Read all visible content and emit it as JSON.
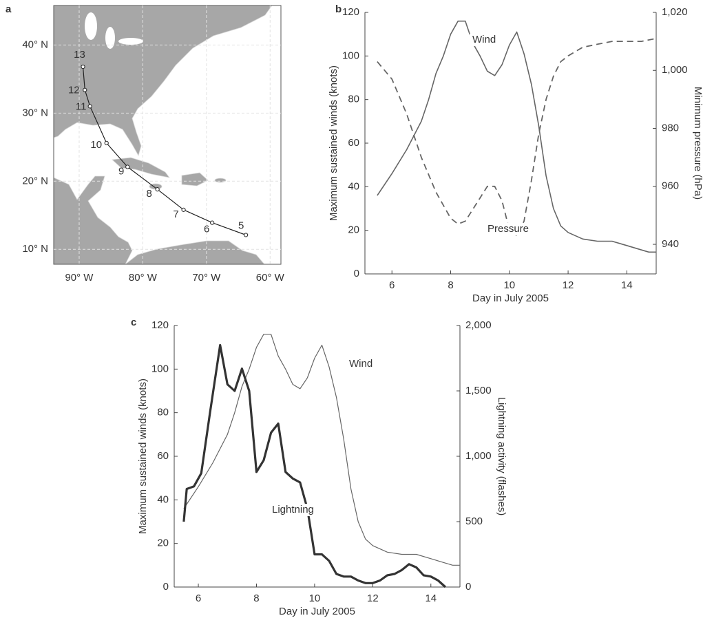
{
  "chart_data": [
    {
      "type": "map",
      "panel_label": "a",
      "xlim": [
        -94,
        -58.3
      ],
      "ylim": [
        7.8,
        45.8
      ],
      "xticks": [
        {
          "value": -90,
          "label": "90° W"
        },
        {
          "value": -80,
          "label": "80° W"
        },
        {
          "value": -70,
          "label": "70° W"
        },
        {
          "value": -60,
          "label": "60° W"
        }
      ],
      "yticks": [
        {
          "value": 10,
          "label": "10° N"
        },
        {
          "value": 20,
          "label": "20° N"
        },
        {
          "value": 30,
          "label": "30° N"
        },
        {
          "value": 40,
          "label": "40° N"
        }
      ],
      "grid": true,
      "series": [
        {
          "color": "#222222",
          "x": [
            -63.8,
            -69.1,
            -73.6,
            -77.7,
            -82.4,
            -85.7,
            -88.3,
            -89.1,
            -89.4
          ],
          "values": [
            12.1,
            13.9,
            15.8,
            18.8,
            22.1,
            25.6,
            31.0,
            33.4,
            36.8
          ],
          "point_labels": [
            "5",
            "6",
            "7",
            "8",
            "9",
            "10",
            "11",
            "12",
            "13"
          ]
        }
      ]
    },
    {
      "type": "line",
      "panel_label": "b",
      "xlabel": "Day in July 2005",
      "ylabel": "Maximum sustained winds (knots)",
      "y2label": "Minimum pressure (hPa)",
      "xlim": [
        5.08,
        15
      ],
      "xticks": [
        6,
        8,
        10,
        12,
        14
      ],
      "ylim": [
        0,
        120
      ],
      "yticks": [
        0,
        20,
        40,
        60,
        80,
        100,
        120
      ],
      "y2lim": [
        929.8,
        1020
      ],
      "y2ticks": [
        940,
        960,
        980,
        {
          "value": 1000,
          "label": "1,000"
        },
        {
          "value": 1020,
          "label": "1,020"
        }
      ],
      "series": [
        {
          "name": "Wind",
          "color": "#666666",
          "line_width": 1.6,
          "x": [
            5.5,
            6,
            6.5,
            7,
            7.25,
            7.5,
            7.75,
            8,
            8.25,
            8.5,
            8.75,
            9,
            9.25,
            9.5,
            9.75,
            10,
            10.25,
            10.5,
            10.75,
            11,
            11.25,
            11.5,
            11.75,
            12,
            12.5,
            13,
            13.5,
            14,
            14.5,
            14.75,
            15
          ],
          "values": [
            36,
            46,
            57,
            70,
            80,
            92,
            100,
            110,
            116,
            116,
            106,
            100,
            93,
            91,
            96,
            105,
            111,
            101,
            87,
            68,
            45,
            30,
            22,
            19,
            16,
            15,
            15,
            13,
            11,
            10,
            10
          ]
        },
        {
          "name": "Pressure",
          "color": "#666666",
          "line_width": 1.8,
          "dashed": true,
          "axis": "y2",
          "x": [
            5.5,
            6,
            6.5,
            7,
            7.5,
            8,
            8.25,
            8.5,
            8.75,
            9,
            9.25,
            9.5,
            9.75,
            10,
            10.25,
            10.5,
            10.75,
            11,
            11.25,
            11.5,
            11.75,
            12,
            12.5,
            13,
            13.5,
            14,
            14.5,
            15
          ],
          "values": [
            1003,
            997,
            985,
            970,
            958,
            949,
            947,
            948,
            952,
            956,
            960,
            960,
            955,
            945,
            943,
            948,
            962,
            978,
            990,
            998,
            1003,
            1005,
            1008,
            1009,
            1010,
            1010,
            1010,
            1011
          ]
        }
      ]
    },
    {
      "type": "line",
      "panel_label": "c",
      "xlabel": "Day in July 2005",
      "ylabel": "Maximum sustained winds (knots)",
      "y2label": "Lightning activity (flashes)",
      "xlim": [
        5.17,
        15
      ],
      "xticks": [
        6,
        8,
        10,
        12,
        14
      ],
      "ylim": [
        0,
        120
      ],
      "yticks": [
        0,
        20,
        40,
        60,
        80,
        100,
        120
      ],
      "y2lim": [
        0,
        2000
      ],
      "y2ticks": [
        0,
        500,
        {
          "value": 1000,
          "label": "1,000"
        },
        {
          "value": 1500,
          "label": "1,500"
        },
        {
          "value": 2000,
          "label": "2,000"
        }
      ],
      "series": [
        {
          "name": "Wind",
          "color": "#666666",
          "line_width": 1.2,
          "x": [
            5.5,
            6,
            6.5,
            7,
            7.25,
            7.5,
            7.75,
            8,
            8.25,
            8.5,
            8.75,
            9,
            9.25,
            9.5,
            9.75,
            10,
            10.25,
            10.5,
            10.75,
            11,
            11.25,
            11.5,
            11.75,
            12,
            12.5,
            13,
            13.5,
            14,
            14.5,
            14.75,
            15
          ],
          "values": [
            36,
            46,
            57,
            70,
            80,
            92,
            100,
            110,
            116,
            116,
            106,
            100,
            93,
            91,
            96,
            105,
            111,
            101,
            87,
            68,
            45,
            30,
            22,
            19,
            16,
            15,
            15,
            13,
            11,
            10,
            10
          ]
        },
        {
          "name": "Lightning",
          "color": "#333333",
          "line_width": 3.2,
          "axis": "y2",
          "x": [
            5.5,
            5.6,
            5.85,
            6.1,
            6.4,
            6.75,
            7,
            7.25,
            7.5,
            7.75,
            8,
            8.25,
            8.5,
            8.75,
            9,
            9.25,
            9.5,
            9.75,
            10,
            10.25,
            10.5,
            10.75,
            11,
            11.25,
            11.5,
            11.75,
            12,
            12.25,
            12.5,
            12.75,
            13,
            13.25,
            13.5,
            13.75,
            14,
            14.25,
            14.5
          ],
          "values": [
            500,
            750,
            770,
            870,
            1330,
            1850,
            1550,
            1500,
            1670,
            1500,
            880,
            970,
            1180,
            1250,
            880,
            830,
            800,
            600,
            250,
            250,
            200,
            100,
            80,
            80,
            50,
            30,
            30,
            50,
            90,
            100,
            130,
            175,
            150,
            90,
            80,
            50,
            0
          ]
        }
      ]
    }
  ]
}
